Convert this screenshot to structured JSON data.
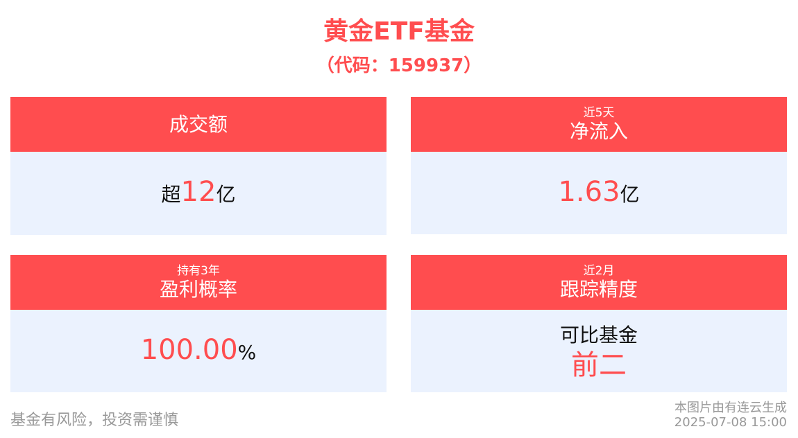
{
  "header": {
    "title": "黄金ETF基金",
    "subtitle": "（代码：159937）"
  },
  "colors": {
    "accent": "#ff4d4f",
    "card_body": "#ebf2fe"
  },
  "cards": [
    {
      "pre": "",
      "label": "成交额",
      "prefix": "超",
      "value": "12",
      "suffix": "亿"
    },
    {
      "pre": "近5天",
      "label": "净流入",
      "prefix": "",
      "value": "1.63",
      "suffix": "亿"
    },
    {
      "pre": "持有3年",
      "label": "盈利概率",
      "prefix": "",
      "value": "100.00",
      "suffix": "%"
    },
    {
      "pre": "近2月",
      "label": "跟踪精度",
      "line1": "可比基金",
      "line2": "前二"
    }
  ],
  "footer": {
    "disclaimer": "基金有风险，投资需谨慎",
    "credit": "本图片由有连云生成",
    "timestamp": "2025-07-08 15:00"
  }
}
